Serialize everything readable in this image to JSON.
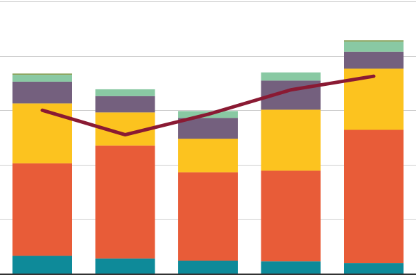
{
  "chart_data": {
    "type": "bar",
    "stacked": true,
    "categories": [
      "",
      "",
      "",
      "",
      ""
    ],
    "series": [
      {
        "color": "#0e8a99",
        "values": [
          6.5,
          5.5,
          4.7,
          4.5,
          3.8
        ]
      },
      {
        "color": "#e85c38",
        "values": [
          34.0,
          41.5,
          32.5,
          33.3,
          49.0
        ]
      },
      {
        "color": "#fcc31f",
        "values": [
          22.0,
          12.2,
          12.3,
          22.4,
          22.5
        ]
      },
      {
        "color": "#74607e",
        "values": [
          8.0,
          6.0,
          7.7,
          10.7,
          6.2
        ]
      },
      {
        "color": "#89c9a3",
        "values": [
          2.5,
          2.5,
          2.5,
          3.0,
          3.7
        ]
      },
      {
        "color": "#8ba55e",
        "values": [
          0.5,
          0.0,
          0.0,
          0.0,
          0.5
        ]
      }
    ],
    "line": {
      "color": "#8a1a33",
      "values": [
        60.0,
        51.0,
        58.5,
        67.5,
        72.5
      ]
    },
    "ylim": [
      0,
      100
    ],
    "yticks": [
      0,
      20,
      40,
      60,
      80,
      100
    ],
    "grid": true,
    "legend": "none",
    "background": "#ffffff",
    "grid_color": "#cccccc",
    "axis_color": "#333333"
  }
}
